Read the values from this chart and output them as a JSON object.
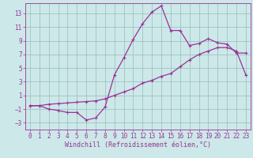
{
  "xlabel": "Windchill (Refroidissement éolien,°C)",
  "background_color": "#cce8e8",
  "line_color": "#993399",
  "grid_color": "#99bbbb",
  "spine_color": "#993399",
  "x_upper_line": [
    0,
    1,
    2,
    3,
    4,
    5,
    6,
    7,
    8,
    9,
    10,
    11,
    12,
    13,
    14,
    15,
    16,
    17,
    18,
    19,
    20,
    21,
    22,
    23
  ],
  "y_upper_line": [
    -0.5,
    -0.5,
    -1.0,
    -1.2,
    -1.5,
    -1.5,
    -2.6,
    -2.3,
    -0.7,
    4.0,
    6.5,
    9.2,
    11.5,
    13.2,
    14.1,
    10.5,
    10.5,
    8.3,
    8.6,
    9.3,
    8.7,
    8.5,
    7.2,
    7.2
  ],
  "x_lower_line": [
    0,
    1,
    2,
    3,
    4,
    5,
    6,
    7,
    8,
    9,
    10,
    11,
    12,
    13,
    14,
    15,
    16,
    17,
    18,
    19,
    20,
    21,
    22,
    23
  ],
  "y_lower_line": [
    -0.5,
    -0.5,
    -0.3,
    -0.2,
    -0.1,
    0.0,
    0.1,
    0.2,
    0.5,
    1.0,
    1.5,
    2.0,
    2.8,
    3.2,
    3.8,
    4.2,
    5.2,
    6.2,
    7.0,
    7.5,
    8.0,
    8.0,
    7.5,
    4.0
  ],
  "ylim": [
    -4,
    14.5
  ],
  "xlim": [
    -0.5,
    23.5
  ],
  "yticks": [
    -3,
    -1,
    1,
    3,
    5,
    7,
    9,
    11,
    13
  ],
  "xticks": [
    0,
    1,
    2,
    3,
    4,
    5,
    6,
    7,
    8,
    9,
    10,
    11,
    12,
    13,
    14,
    15,
    16,
    17,
    18,
    19,
    20,
    21,
    22,
    23
  ],
  "tick_fontsize": 5.5,
  "xlabel_fontsize": 6.0,
  "marker_size": 3.0,
  "linewidth": 0.9
}
